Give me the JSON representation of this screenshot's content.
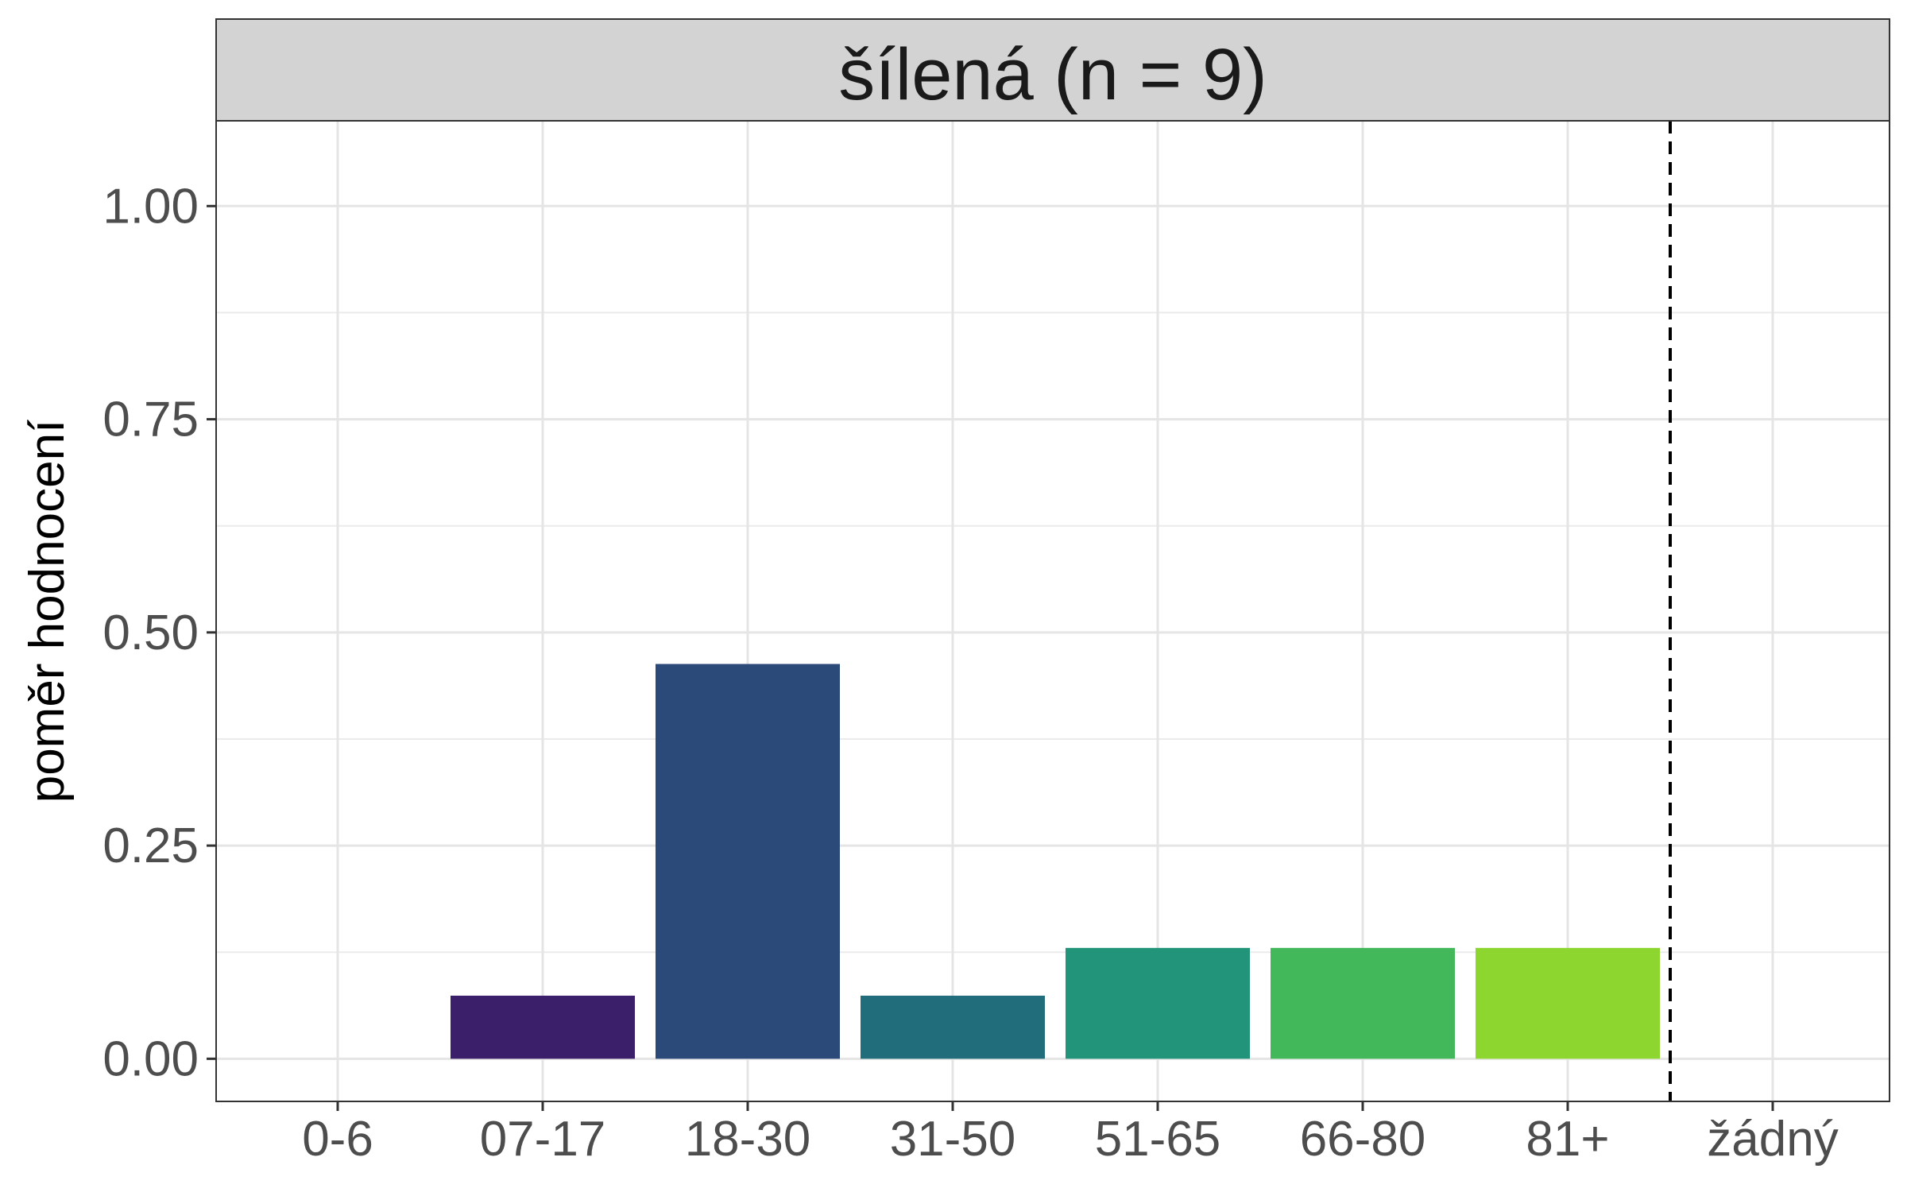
{
  "chart_data": {
    "type": "bar",
    "title": "šílená (n = 9)",
    "xlabel": "",
    "ylabel": "poměr hodnocení",
    "categories": [
      "0-6",
      "07-17",
      "18-30",
      "31-50",
      "51-65",
      "66-80",
      "81+",
      "žádný"
    ],
    "values": [
      0,
      0.074,
      0.463,
      0.074,
      0.13,
      0.13,
      0.13,
      0
    ],
    "colors": [
      "#440154",
      "#3b1f6b",
      "#2c4a79",
      "#216d7c",
      "#21947a",
      "#42b85a",
      "#8dd630",
      "#fde725"
    ],
    "ylim": [
      -0.05,
      1.1
    ],
    "yticks": [
      0,
      0.25,
      0.5,
      0.75,
      1.0
    ],
    "ytick_labels": [
      "0.00",
      "0.25",
      "0.50",
      "0.75",
      "1.00"
    ],
    "reference_line": {
      "style": "dashed",
      "between": [
        "81+",
        "žádný"
      ]
    },
    "grid": true,
    "legend": "none"
  }
}
